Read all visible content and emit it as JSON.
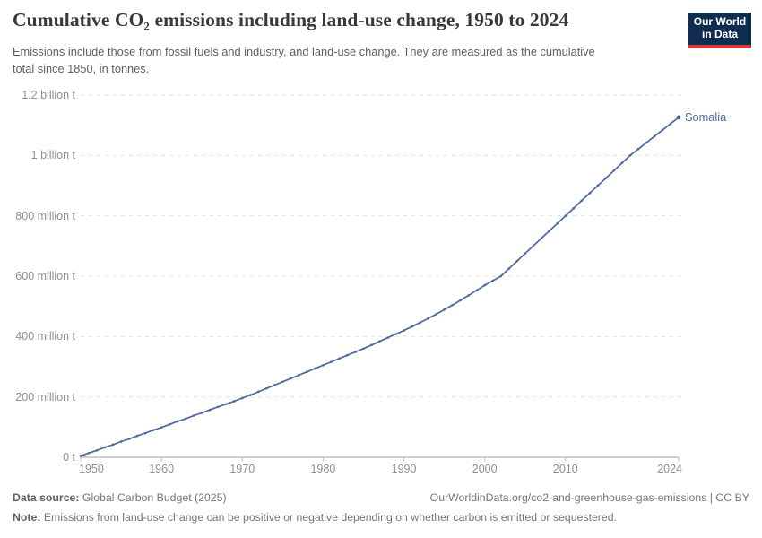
{
  "header": {
    "title": "Cumulative CO₂ emissions including land-use change, 1950 to 2024",
    "subtitle": "Emissions include those from fossil fuels and industry, and land-use change. They are measured as the cumulative total since 1850, in tonnes."
  },
  "logo": {
    "line1": "Our World",
    "line2": "in Data"
  },
  "colors": {
    "line": "#4c6a9e",
    "entity_label": "#4c6a9e",
    "grid": "#e2e2e2",
    "axis": "#9f9f9f",
    "tick": "#bdbdbd",
    "tick_text": "#8f8f8f",
    "title_text": "#383838",
    "logo_bg": "#102d4f",
    "logo_stripe": "#d6393a"
  },
  "chart_data": {
    "type": "line",
    "title": "Cumulative CO₂ emissions including land-use change, 1950 to 2024",
    "xlabel": "",
    "ylabel": "",
    "values_unit": "million tonnes CO₂",
    "x_range": [
      1950,
      2024
    ],
    "ylim": [
      0,
      1200
    ],
    "grid": "horizontal dashed",
    "legend_position": "end-of-line label",
    "xticks": [
      1950,
      1960,
      1970,
      1980,
      1990,
      2000,
      2010,
      2024
    ],
    "yticks": [
      {
        "value": 0,
        "label": "0 t"
      },
      {
        "value": 200,
        "label": "200 million t"
      },
      {
        "value": 400,
        "label": "400 million t"
      },
      {
        "value": 600,
        "label": "600 million t"
      },
      {
        "value": 800,
        "label": "800 million t"
      },
      {
        "value": 1000,
        "label": "1 billion t"
      },
      {
        "value": 1200,
        "label": "1.2 billion t"
      }
    ],
    "x": [
      1950,
      1951,
      1952,
      1953,
      1954,
      1955,
      1956,
      1957,
      1958,
      1959,
      1960,
      1961,
      1962,
      1963,
      1964,
      1965,
      1966,
      1967,
      1968,
      1969,
      1970,
      1971,
      1972,
      1973,
      1974,
      1975,
      1976,
      1977,
      1978,
      1979,
      1980,
      1981,
      1982,
      1983,
      1984,
      1985,
      1986,
      1987,
      1988,
      1989,
      1990,
      1991,
      1992,
      1993,
      1994,
      1995,
      1996,
      1997,
      1998,
      1999,
      2000,
      2001,
      2002,
      2003,
      2004,
      2005,
      2006,
      2007,
      2008,
      2009,
      2010,
      2011,
      2012,
      2013,
      2014,
      2015,
      2016,
      2017,
      2018,
      2019,
      2020,
      2021,
      2022,
      2023,
      2024
    ],
    "series": [
      {
        "name": "Somalia",
        "values": [
          5,
          14,
          23,
          33,
          42,
          52,
          61,
          71,
          80,
          90,
          99,
          109,
          119,
          128,
          138,
          147,
          157,
          167,
          176,
          186,
          196,
          206,
          217,
          228,
          239,
          250,
          261,
          272,
          283,
          294,
          305,
          316,
          327,
          338,
          349,
          360,
          372,
          384,
          396,
          408,
          420,
          433,
          446,
          460,
          474,
          489,
          504,
          520,
          536,
          553,
          570,
          585,
          600,
          625,
          650,
          675,
          700,
          725,
          750,
          775,
          800,
          825,
          850,
          875,
          900,
          925,
          950,
          975,
          1000,
          1021,
          1042,
          1063,
          1084,
          1105,
          1126
        ]
      }
    ]
  },
  "footer": {
    "data_source_label": "Data source:",
    "data_source_value": "Global Carbon Budget (2025)",
    "link_text": "OurWorldinData.org/co2-and-greenhouse-gas-emissions | CC BY",
    "note_label": "Note:",
    "note_text": "Emissions from land-use change can be positive or negative depending on whether carbon is emitted or sequestered."
  }
}
